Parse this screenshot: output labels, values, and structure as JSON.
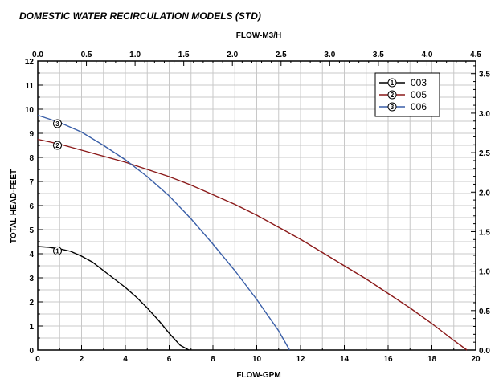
{
  "chart_data": {
    "type": "line",
    "title": "DOMESTIC WATER RECIRCULATION MODELS (STD)",
    "xlabel": "FLOW-GPM",
    "ylabel": "TOTAL HEAD-FEET",
    "top_xlabel": "FLOW-M3/H",
    "xlim": [
      0,
      20
    ],
    "ylim": [
      0,
      12
    ],
    "top_xlim": [
      0,
      4.5
    ],
    "right_ylim": [
      0,
      3.66
    ],
    "x_ticks": [
      "0",
      "2",
      "4",
      "6",
      "8",
      "10",
      "12",
      "14",
      "16",
      "18",
      "20"
    ],
    "y_ticks": [
      "0",
      "1",
      "2",
      "3",
      "4",
      "5",
      "6",
      "7",
      "8",
      "9",
      "10",
      "11",
      "12"
    ],
    "top_ticks": [
      "0.0",
      "0.5",
      "1.0",
      "1.5",
      "2.0",
      "2.5",
      "3.0",
      "3.5",
      "4.0",
      "4.5"
    ],
    "right_ticks": [
      "0.0",
      "0.5",
      "1.0",
      "1.5",
      "2.0",
      "2.5",
      "3.0",
      "3.5"
    ],
    "grid": true,
    "legend_position": "top-right",
    "series": [
      {
        "name": "003",
        "marker": "1",
        "color": "#000000",
        "marker_at": [
          0.9,
          4.12
        ],
        "points": [
          [
            0,
            4.3
          ],
          [
            0.5,
            4.27
          ],
          [
            1,
            4.2
          ],
          [
            1.5,
            4.1
          ],
          [
            2,
            3.9
          ],
          [
            2.5,
            3.65
          ],
          [
            3,
            3.3
          ],
          [
            3.5,
            2.95
          ],
          [
            4,
            2.6
          ],
          [
            4.5,
            2.2
          ],
          [
            5,
            1.75
          ],
          [
            5.5,
            1.25
          ],
          [
            6,
            0.7
          ],
          [
            6.5,
            0.2
          ],
          [
            6.9,
            0
          ]
        ]
      },
      {
        "name": "005",
        "marker": "2",
        "color": "#8b1a1a",
        "marker_at": [
          0.9,
          8.5
        ],
        "points": [
          [
            0,
            8.75
          ],
          [
            1,
            8.55
          ],
          [
            2,
            8.3
          ],
          [
            3,
            8.05
          ],
          [
            4,
            7.8
          ],
          [
            5,
            7.5
          ],
          [
            6,
            7.2
          ],
          [
            7,
            6.85
          ],
          [
            8,
            6.45
          ],
          [
            9,
            6.05
          ],
          [
            10,
            5.6
          ],
          [
            11,
            5.1
          ],
          [
            12,
            4.6
          ],
          [
            13,
            4.05
          ],
          [
            14,
            3.5
          ],
          [
            15,
            2.95
          ],
          [
            16,
            2.35
          ],
          [
            17,
            1.75
          ],
          [
            18,
            1.1
          ],
          [
            19,
            0.4
          ],
          [
            19.6,
            0
          ]
        ]
      },
      {
        "name": "006",
        "marker": "3",
        "color": "#3a5fa8",
        "marker_at": [
          0.9,
          9.4
        ],
        "points": [
          [
            0,
            9.75
          ],
          [
            1,
            9.45
          ],
          [
            2,
            9.05
          ],
          [
            3,
            8.5
          ],
          [
            4,
            7.9
          ],
          [
            5,
            7.2
          ],
          [
            6,
            6.4
          ],
          [
            7,
            5.45
          ],
          [
            8,
            4.4
          ],
          [
            9,
            3.3
          ],
          [
            10,
            2.1
          ],
          [
            11,
            0.8
          ],
          [
            11.5,
            0
          ]
        ]
      }
    ]
  }
}
